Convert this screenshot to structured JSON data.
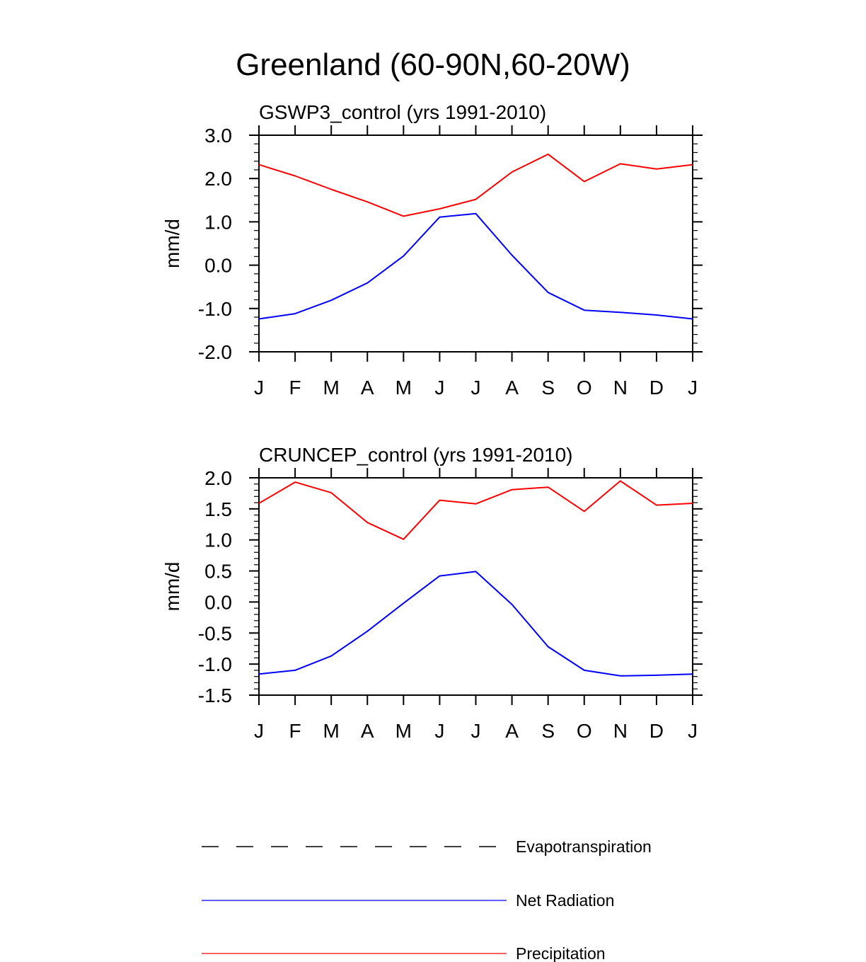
{
  "title": "Greenland (60-90N,60-20W)",
  "colors": {
    "axis": "#000000",
    "net_radiation": "#0000ff",
    "precipitation": "#ff0000",
    "evapotranspiration": "#000000"
  },
  "chart_data": [
    {
      "type": "line",
      "title": "GSWP3_control (yrs 1991-2010)",
      "xlabel": "",
      "ylabel": "mm/d",
      "categories": [
        "J",
        "F",
        "M",
        "A",
        "M",
        "J",
        "J",
        "A",
        "S",
        "O",
        "N",
        "D",
        "J"
      ],
      "ylim": [
        -2.0,
        3.0
      ],
      "yticks": [
        -2.0,
        -1.0,
        0.0,
        1.0,
        2.0,
        3.0
      ],
      "ytick_labels": [
        "-2.0",
        "-1.0",
        "0.0",
        "1.0",
        "2.0",
        "3.0"
      ],
      "y_minor_step": 0.2,
      "series": [
        {
          "name": "Net Radiation",
          "color": "#0000ff",
          "values": [
            -1.24,
            -1.12,
            -0.81,
            -0.41,
            0.21,
            1.11,
            1.19,
            0.23,
            -0.63,
            -1.04,
            -1.09,
            -1.15,
            -1.24
          ]
        },
        {
          "name": "Precipitation",
          "color": "#ff0000",
          "values": [
            2.32,
            2.06,
            1.75,
            1.46,
            1.13,
            1.3,
            1.52,
            2.15,
            2.56,
            1.93,
            2.34,
            2.22,
            2.32
          ]
        }
      ]
    },
    {
      "type": "line",
      "title": "CRUNCEP_control (yrs 1991-2010)",
      "xlabel": "",
      "ylabel": "mm/d",
      "categories": [
        "J",
        "F",
        "M",
        "A",
        "M",
        "J",
        "J",
        "A",
        "S",
        "O",
        "N",
        "D",
        "J"
      ],
      "ylim": [
        -1.5,
        2.0
      ],
      "yticks": [
        -1.5,
        -1.0,
        -0.5,
        0.0,
        0.5,
        1.0,
        1.5,
        2.0
      ],
      "ytick_labels": [
        "-1.5",
        "-1.0",
        "-0.5",
        "0.0",
        "0.5",
        "1.0",
        "1.5",
        "2.0"
      ],
      "y_minor_step": 0.1,
      "series": [
        {
          "name": "Net Radiation",
          "color": "#0000ff",
          "values": [
            -1.16,
            -1.1,
            -0.87,
            -0.47,
            -0.02,
            0.42,
            0.49,
            -0.04,
            -0.72,
            -1.1,
            -1.19,
            -1.18,
            -1.16
          ]
        },
        {
          "name": "Precipitation",
          "color": "#ff0000",
          "values": [
            1.59,
            1.93,
            1.76,
            1.28,
            1.01,
            1.64,
            1.58,
            1.81,
            1.85,
            1.46,
            1.95,
            1.56,
            1.59
          ]
        }
      ]
    }
  ],
  "legend": {
    "position": "bottom",
    "entries": [
      {
        "label": "Evapotranspiration",
        "color": "#000000",
        "style": "dashed"
      },
      {
        "label": "Net Radiation",
        "color": "#0000ff",
        "style": "solid"
      },
      {
        "label": "Precipitation",
        "color": "#ff0000",
        "style": "solid"
      }
    ]
  }
}
